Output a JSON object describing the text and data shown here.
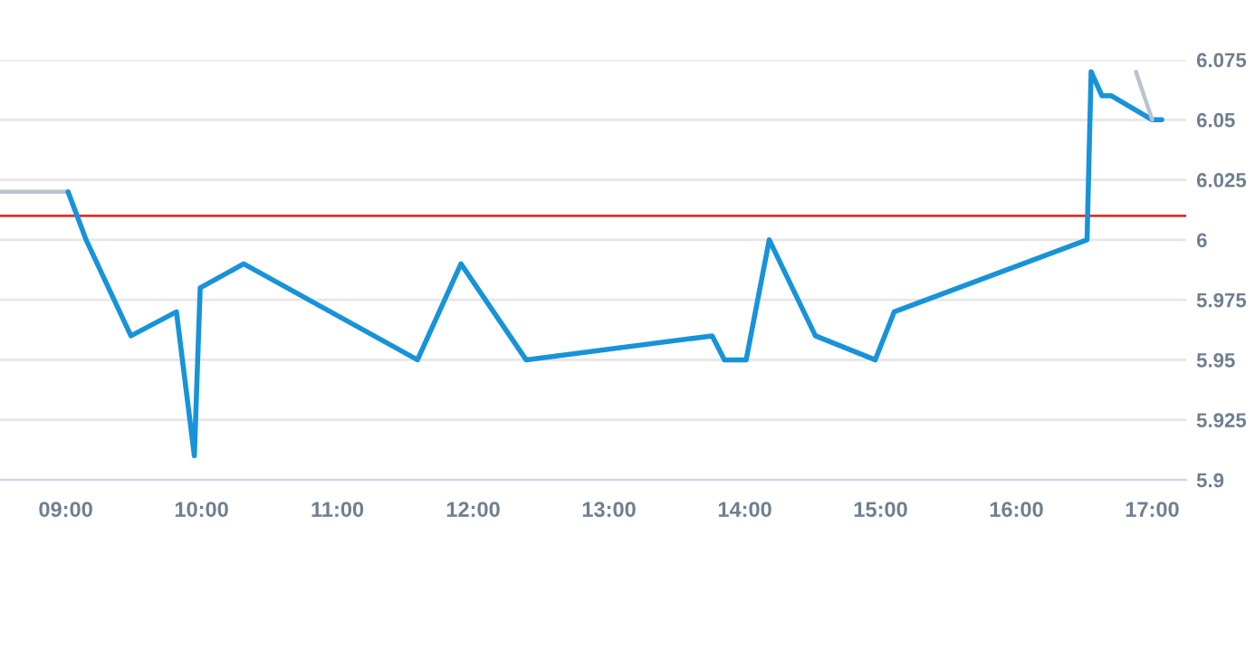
{
  "chart_data": {
    "type": "line",
    "series": [
      {
        "color": "#b8c4ce",
        "x": [
          8.516,
          9.017
        ],
        "values": [
          6.02,
          6.02
        ]
      },
      {
        "color": "#1793d9",
        "x": [
          9.017,
          9.15,
          9.48,
          9.815,
          9.947,
          9.99,
          10.31,
          11.59,
          11.91,
          12.39,
          13.76,
          13.85,
          14.01,
          14.18,
          14.52,
          14.96,
          15.1,
          16.52,
          16.55,
          16.63,
          16.7,
          17.0,
          17.07
        ],
        "values": [
          6.02,
          6.0,
          5.96,
          5.97,
          5.91,
          5.98,
          5.99,
          5.95,
          5.99,
          5.95,
          5.96,
          5.95,
          5.95,
          6.0,
          5.96,
          5.95,
          5.97,
          6.0,
          6.07,
          6.06,
          6.06,
          6.05,
          6.05
        ]
      },
      {
        "color": "#b8c4ce",
        "x": [
          16.88,
          17.0
        ],
        "values": [
          6.07,
          6.05
        ]
      }
    ],
    "xlim": [
      8.516,
      17.25
    ],
    "xticks": [
      {
        "value": 9,
        "label": "09:00"
      },
      {
        "value": 10,
        "label": "10:00"
      },
      {
        "value": 11,
        "label": "11:00"
      },
      {
        "value": 12,
        "label": "12:00"
      },
      {
        "value": 13,
        "label": "13:00"
      },
      {
        "value": 14,
        "label": "14:00"
      },
      {
        "value": 15,
        "label": "15:00"
      },
      {
        "value": 16,
        "label": "16:00"
      },
      {
        "value": 17,
        "label": "17:00"
      }
    ],
    "ylim": [
      5.9,
      6.075
    ],
    "yticks": [
      5.9,
      5.925,
      5.95,
      5.975,
      6,
      6.025,
      6.05,
      6.075
    ],
    "ref_lines": [
      {
        "axis": "y",
        "value": 6.01,
        "color": "#d9342b"
      }
    ],
    "grid": "y",
    "marker": "none",
    "line_style": "solid"
  }
}
